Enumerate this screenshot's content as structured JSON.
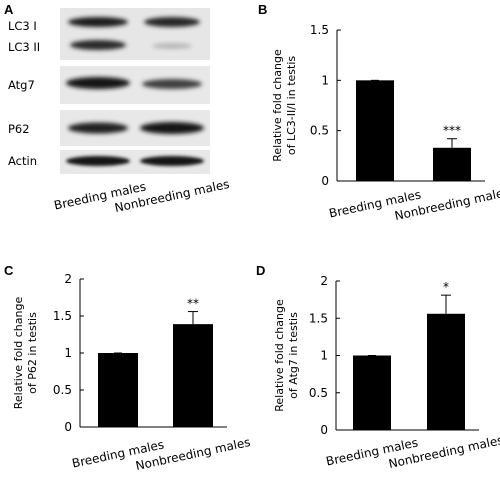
{
  "panel_a": {
    "letter": "A",
    "row_labels": [
      "LC3 I",
      "LC3 II",
      "Atg7",
      "P62",
      "Actin"
    ],
    "lane_labels": [
      "Breeding males",
      "Nonbreeding males"
    ]
  },
  "chart_data": [
    {
      "panel": "B",
      "type": "bar",
      "categories": [
        "Breeding males",
        "Nonbreeding males"
      ],
      "values": [
        1,
        0.33
      ],
      "errors": [
        0,
        0.09
      ],
      "significance": [
        "",
        "***"
      ],
      "ylabel_lines": [
        "Relative fold change",
        "of LC3-II/I in testis"
      ],
      "ylim": [
        0,
        1.5
      ],
      "yticks": [
        "0",
        "0.5",
        "1",
        "1.5"
      ],
      "grid": false
    },
    {
      "panel": "C",
      "type": "bar",
      "categories": [
        "Breeding males",
        "Nonbreeding males"
      ],
      "values": [
        1,
        1.39
      ],
      "errors": [
        0,
        0.17
      ],
      "significance": [
        "",
        "**"
      ],
      "ylabel_lines": [
        "Relative fold change",
        "of P62 in testis"
      ],
      "ylim": [
        0,
        2
      ],
      "yticks": [
        "0",
        "0.5",
        "1",
        "1.5",
        "2"
      ],
      "grid": false
    },
    {
      "panel": "D",
      "type": "bar",
      "categories": [
        "Breeding males",
        "Nonbreeding males"
      ],
      "values": [
        1,
        1.56
      ],
      "errors": [
        0,
        0.25
      ],
      "significance": [
        "",
        "*"
      ],
      "ylabel_lines": [
        "Relative fold change",
        "of Atg7 in testis"
      ],
      "ylim": [
        0,
        2
      ],
      "yticks": [
        "0",
        "0.5",
        "1",
        "1.5",
        "2"
      ],
      "grid": false
    }
  ]
}
